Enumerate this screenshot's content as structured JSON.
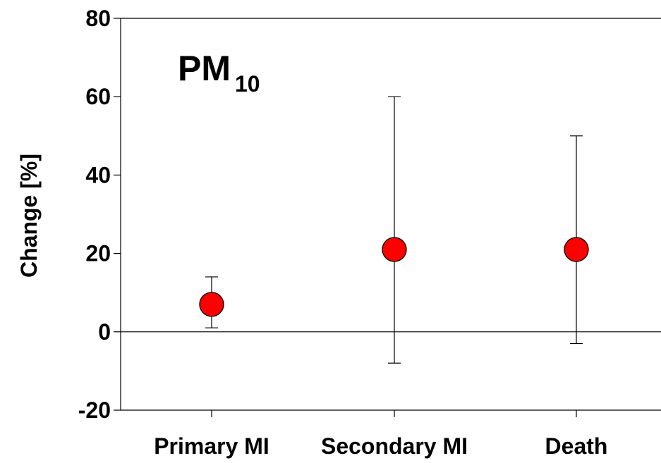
{
  "chart_data": {
    "type": "scatter",
    "title": "",
    "annotation": {
      "main": "PM",
      "subscript": "10"
    },
    "xlabel": "",
    "ylabel": "Change [%]",
    "categories": [
      "Primary MI",
      "Secondary MI",
      "Death"
    ],
    "series": [
      {
        "values": [
          7,
          21,
          21
        ],
        "err_low": [
          1,
          -8,
          -3
        ],
        "err_high": [
          14,
          60,
          50
        ]
      }
    ],
    "ylim": [
      -20,
      80
    ],
    "yticks": [
      -20,
      0,
      20,
      40,
      60,
      80
    ],
    "ytick_labels": [
      "-20",
      "0",
      "20",
      "40",
      "60",
      "80"
    ],
    "reference_line": 0,
    "grid": false,
    "legend": "none",
    "marker_color": "#ff0000",
    "marker_edge_color": "#000000"
  }
}
